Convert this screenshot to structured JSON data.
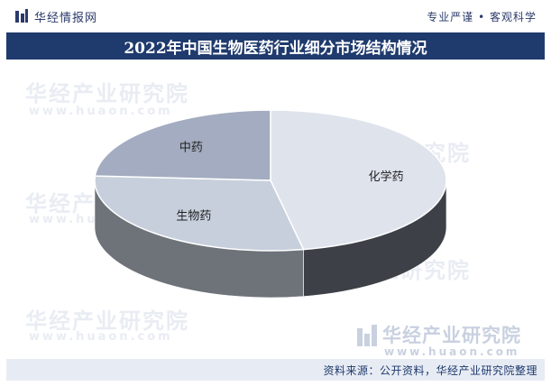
{
  "header": {
    "brand": "华经情报网",
    "tagline": "专业严谨 • 客观科学"
  },
  "title": "2022年中国生物医药行业细分市场结构情况",
  "watermark": {
    "text": "华经产业研究院",
    "url": "www.huaon.com"
  },
  "footer": {
    "source": "资料来源：公开资料，华经产业研究院整理"
  },
  "colors": {
    "title_bg": "#1f3a6d",
    "footer_bg": "#e7ebf3",
    "slice_top": [
      "#dfe3ec",
      "#c7cfdc",
      "#a3acc0"
    ],
    "slice_side": [
      "#3d4147",
      "#6e7279",
      "#8e939c"
    ]
  },
  "chart_data": {
    "type": "pie",
    "style": "3d",
    "categories": [
      "化学药",
      "生物药",
      "中药"
    ],
    "values": [
      47,
      29,
      24
    ],
    "unit": "%"
  }
}
